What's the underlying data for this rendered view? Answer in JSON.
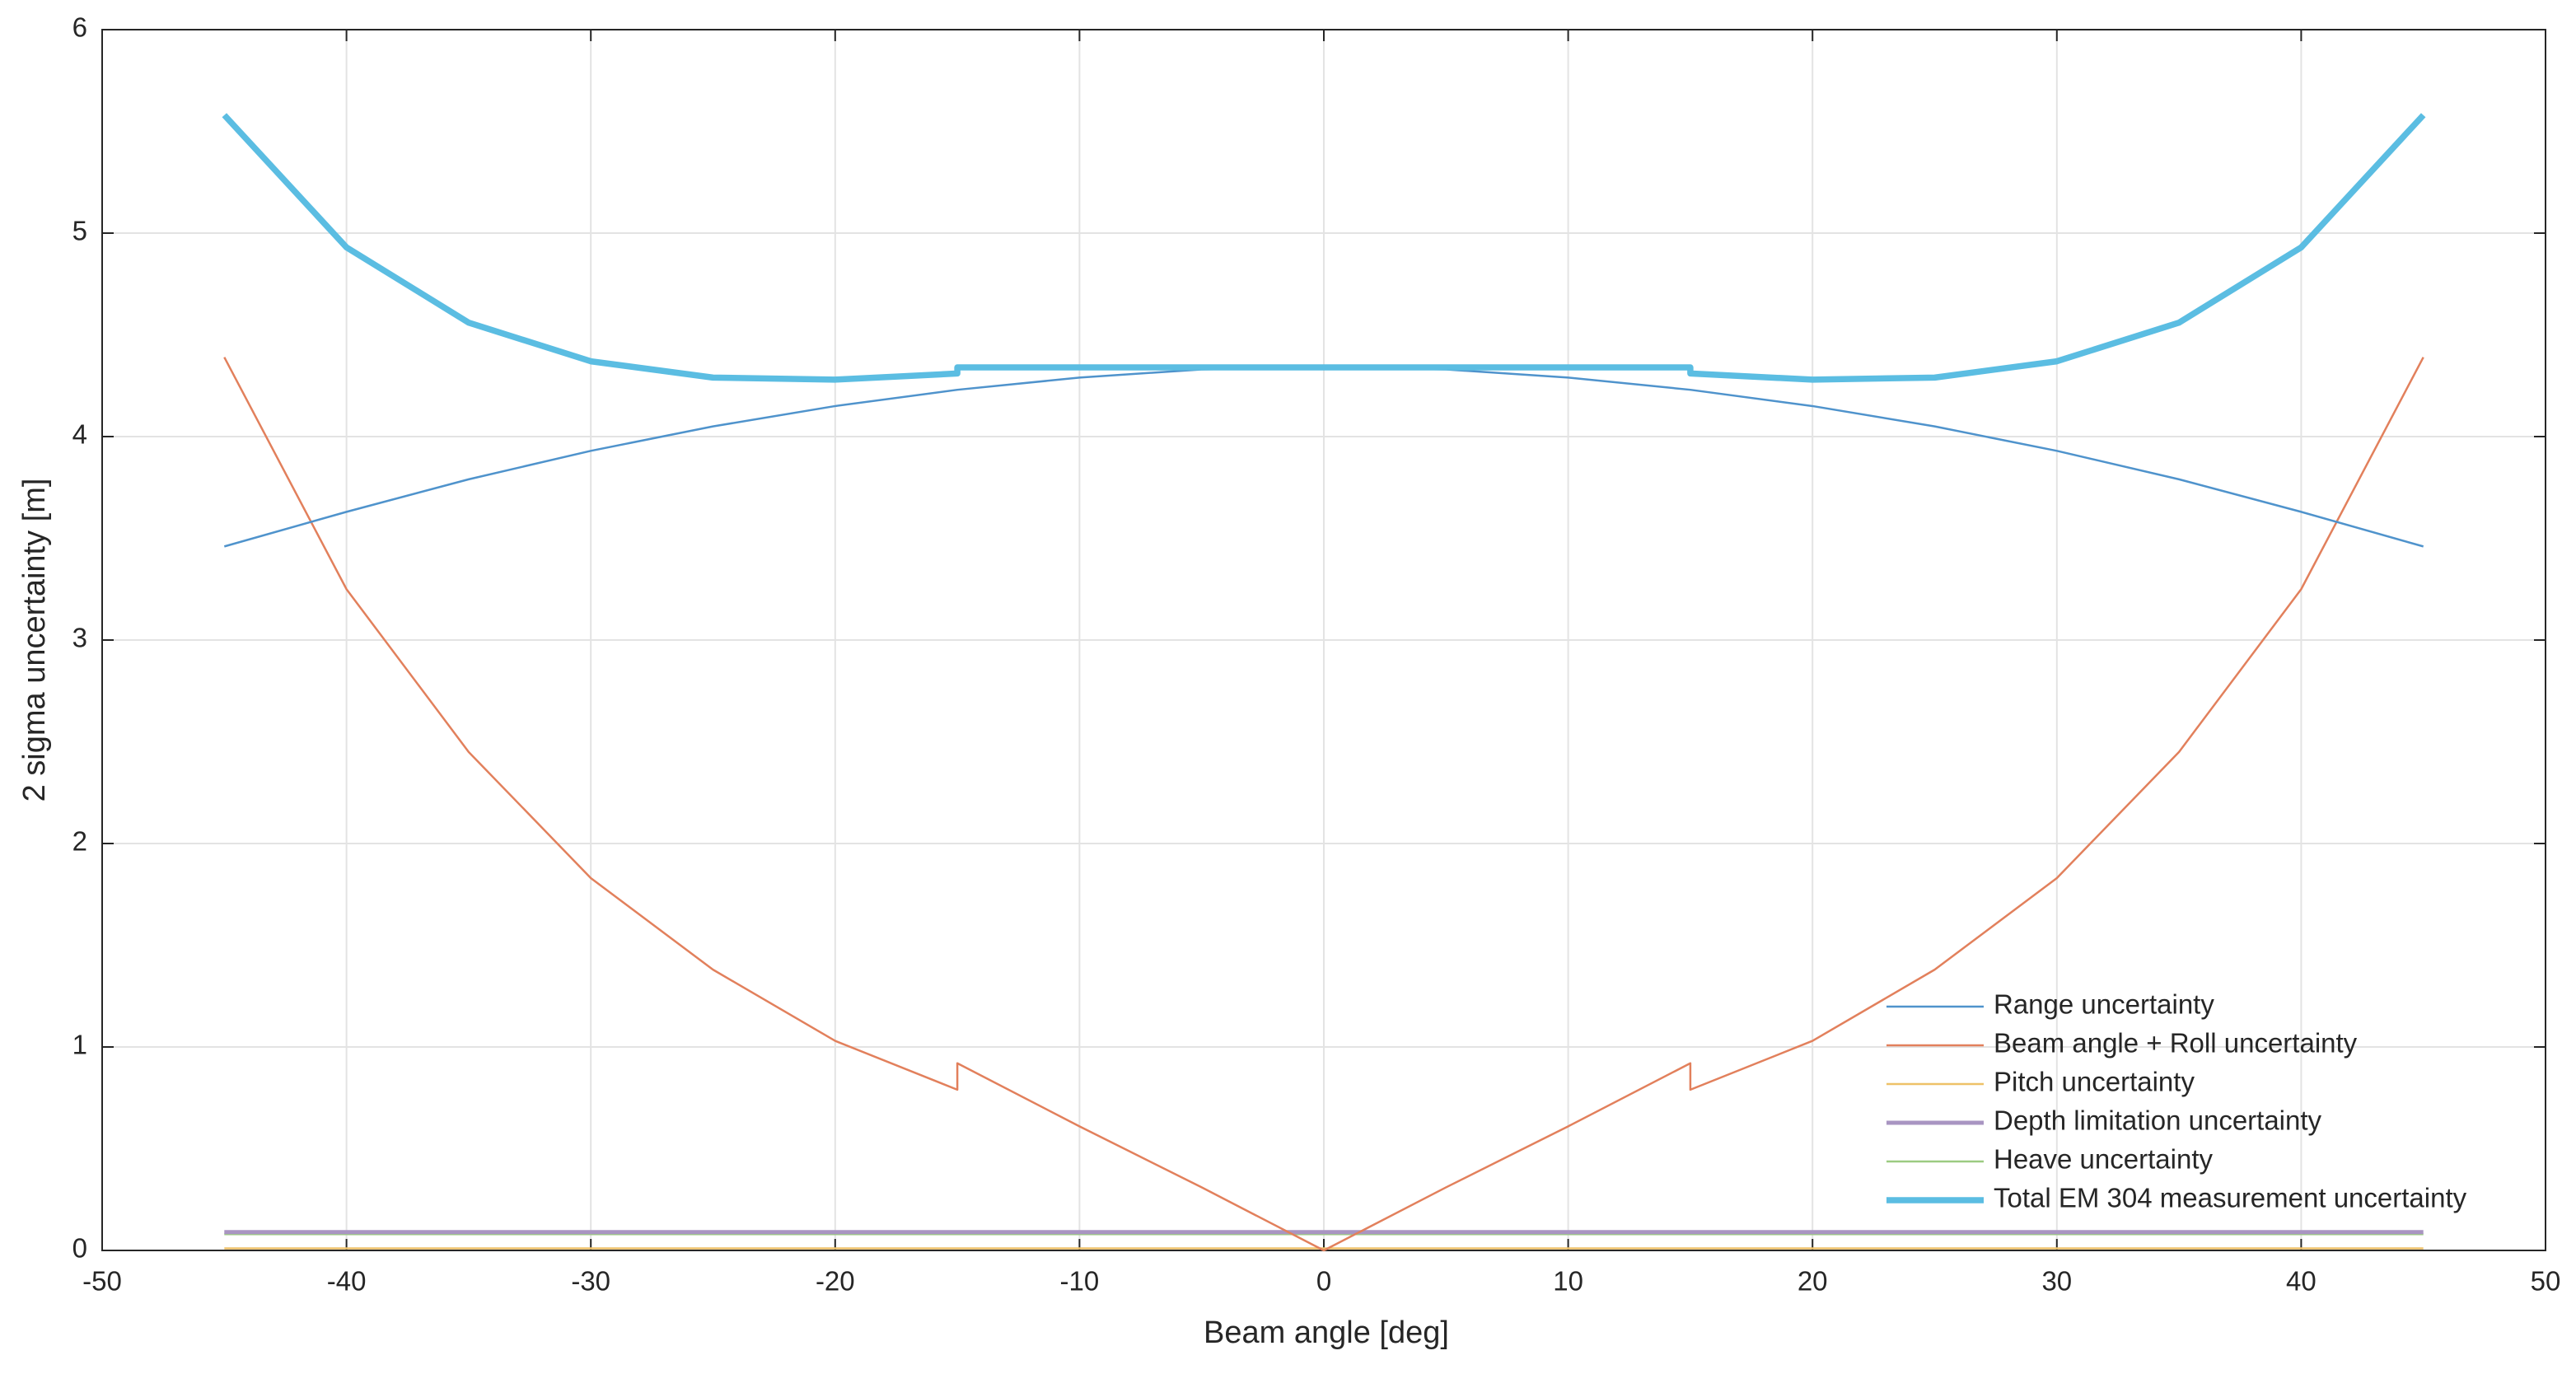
{
  "chart_data": {
    "type": "line",
    "xlabel": "Beam angle [deg]",
    "ylabel": "2 sigma uncertainty [m]",
    "x": [
      -45,
      -40,
      -35,
      -30,
      -25,
      -20,
      -15,
      -15,
      -10,
      -5,
      0,
      5,
      10,
      15,
      15,
      20,
      25,
      30,
      35,
      40,
      45
    ],
    "series": [
      {
        "name": "Range uncertainty",
        "color": "#4f93cc",
        "width": 1,
        "values": [
          3.46,
          3.63,
          3.79,
          3.93,
          4.05,
          4.15,
          4.23,
          4.23,
          4.29,
          4.33,
          4.34,
          4.33,
          4.29,
          4.23,
          4.23,
          4.15,
          4.05,
          3.93,
          3.79,
          3.63,
          3.46
        ]
      },
      {
        "name": "Beam angle + Roll uncertainty",
        "color": "#e2805c",
        "width": 1,
        "values": [
          4.39,
          3.25,
          2.45,
          1.83,
          1.38,
          1.03,
          0.79,
          0.92,
          0.61,
          0.31,
          0,
          0.31,
          0.61,
          0.92,
          0.79,
          1.03,
          1.38,
          1.83,
          2.45,
          3.25,
          4.39
        ]
      },
      {
        "name": "Pitch uncertainty",
        "color": "#eec168",
        "width": 1,
        "values": [
          0.01,
          0.01,
          0.01,
          0.01,
          0.01,
          0.01,
          0.01,
          0.01,
          0.01,
          0.01,
          0.01,
          0.01,
          0.01,
          0.01,
          0.01,
          0.01,
          0.01,
          0.01,
          0.01,
          0.01,
          0.01
        ]
      },
      {
        "name": "Depth limitation uncertainty",
        "color": "#a995c2",
        "width": 2,
        "values": [
          0.09,
          0.09,
          0.09,
          0.09,
          0.09,
          0.09,
          0.09,
          0.09,
          0.09,
          0.09,
          0.09,
          0.09,
          0.09,
          0.09,
          0.09,
          0.09,
          0.09,
          0.09,
          0.09,
          0.09,
          0.09
        ]
      },
      {
        "name": "Heave uncertainty",
        "color": "#9ccb82",
        "width": 1,
        "values": [
          0.08,
          0.08,
          0.08,
          0.08,
          0.08,
          0.08,
          0.08,
          0.08,
          0.08,
          0.08,
          0.08,
          0.08,
          0.08,
          0.08,
          0.08,
          0.08,
          0.08,
          0.08,
          0.08,
          0.08,
          0.08
        ]
      },
      {
        "name": "Total EM 304 measurement uncertainty",
        "color": "#5bbde2",
        "width": 3,
        "values": [
          5.58,
          4.93,
          4.56,
          4.37,
          4.29,
          4.28,
          4.31,
          4.34,
          4.34,
          4.34,
          4.34,
          4.34,
          4.34,
          4.34,
          4.31,
          4.28,
          4.29,
          4.37,
          4.56,
          4.93,
          5.58
        ]
      }
    ],
    "xlim": [
      -50,
      50
    ],
    "xticks": [
      -50,
      -40,
      -30,
      -20,
      -10,
      0,
      10,
      20,
      30,
      40,
      50
    ],
    "ylim": [
      0,
      6
    ],
    "yticks": [
      0,
      1,
      2,
      3,
      4,
      5,
      6
    ],
    "grid": true,
    "legend": "lower right"
  }
}
